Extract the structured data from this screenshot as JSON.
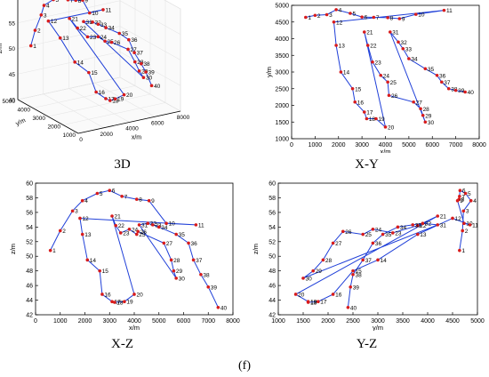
{
  "figure_label": "(f)",
  "colors": {
    "line": "#1f3fd8",
    "point": "#d81c1c",
    "axis": "#000000",
    "grid": "#e6e6e6"
  },
  "chart_data": [
    {
      "id": "3d",
      "caption": "3D",
      "type": "line",
      "projection": "3d",
      "xlabel": "x/m",
      "ylabel": "y/m",
      "zlabel": "z/m",
      "xlim": [
        0,
        8000
      ],
      "ylim": [
        1000,
        5000
      ],
      "zlim": [
        40,
        60
      ],
      "xticks": [
        0,
        2000,
        4000,
        6000,
        8000
      ],
      "yticks": [
        1000,
        2000,
        3000,
        4000,
        5000
      ],
      "zticks": [
        40,
        45,
        50,
        55,
        60
      ],
      "grid": true
    },
    {
      "id": "xy",
      "caption": "X-Y",
      "type": "line",
      "xlabel": "x/m",
      "ylabel": "y/m",
      "xlim": [
        0,
        8000
      ],
      "ylim": [
        1000,
        5000
      ],
      "xticks": [
        0,
        1000,
        2000,
        3000,
        4000,
        5000,
        6000,
        7000,
        8000
      ],
      "yticks": [
        1000,
        1500,
        2000,
        2500,
        3000,
        3500,
        4000,
        4500,
        5000
      ],
      "grid": false
    },
    {
      "id": "xz",
      "caption": "X-Z",
      "type": "line",
      "xlabel": "x/m",
      "ylabel": "z/m",
      "xlim": [
        0,
        8000
      ],
      "ylim": [
        42,
        60
      ],
      "xticks": [
        0,
        1000,
        2000,
        3000,
        4000,
        5000,
        6000,
        7000,
        8000
      ],
      "yticks": [
        42,
        44,
        46,
        48,
        50,
        52,
        54,
        56,
        58,
        60
      ],
      "grid": false
    },
    {
      "id": "yz",
      "caption": "Y-Z",
      "type": "line",
      "xlabel": "y/m",
      "ylabel": "z/m",
      "xlim": [
        1000,
        5000
      ],
      "ylim": [
        42,
        60
      ],
      "xticks": [
        1000,
        1500,
        2000,
        2500,
        3000,
        3500,
        4000,
        4500,
        5000
      ],
      "yticks": [
        42,
        44,
        46,
        48,
        50,
        52,
        54,
        56,
        58,
        60
      ],
      "grid": false
    }
  ],
  "points": [
    {
      "id": 1,
      "x": 600,
      "y": 4640,
      "z": 50.8
    },
    {
      "id": 2,
      "x": 1000,
      "y": 4700,
      "z": 53.5
    },
    {
      "id": 3,
      "x": 1500,
      "y": 4720,
      "z": 56.2
    },
    {
      "id": 4,
      "x": 1900,
      "y": 4870,
      "z": 57.6
    },
    {
      "id": 5,
      "x": 2500,
      "y": 4760,
      "z": 58.6
    },
    {
      "id": 6,
      "x": 3000,
      "y": 4650,
      "z": 59.0
    },
    {
      "id": 7,
      "x": 3500,
      "y": 4640,
      "z": 58.2
    },
    {
      "id": 8,
      "x": 4100,
      "y": 4630,
      "z": 57.8
    },
    {
      "id": 9,
      "x": 4600,
      "y": 4600,
      "z": 57.6
    },
    {
      "id": 10,
      "x": 5300,
      "y": 4730,
      "z": 54.5
    },
    {
      "id": 11,
      "x": 6500,
      "y": 4850,
      "z": 54.3
    },
    {
      "id": 12,
      "x": 1800,
      "y": 4500,
      "z": 55.2
    },
    {
      "id": 13,
      "x": 1900,
      "y": 3800,
      "z": 53.0
    },
    {
      "id": 14,
      "x": 2100,
      "y": 3000,
      "z": 49.5
    },
    {
      "id": 15,
      "x": 2600,
      "y": 2500,
      "z": 48.0
    },
    {
      "id": 16,
      "x": 2700,
      "y": 2100,
      "z": 44.8
    },
    {
      "id": 17,
      "x": 3100,
      "y": 1800,
      "z": 43.8
    },
    {
      "id": 18,
      "x": 3200,
      "y": 1600,
      "z": 43.7
    },
    {
      "id": 19,
      "x": 3600,
      "y": 1600,
      "z": 43.8
    },
    {
      "id": 20,
      "x": 4000,
      "y": 1350,
      "z": 44.8
    },
    {
      "id": 21,
      "x": 3100,
      "y": 4200,
      "z": 55.5
    },
    {
      "id": 22,
      "x": 3250,
      "y": 3800,
      "z": 54.2
    },
    {
      "id": 23,
      "x": 3450,
      "y": 3300,
      "z": 53.2
    },
    {
      "id": 24,
      "x": 3800,
      "y": 2900,
      "z": 53.7
    },
    {
      "id": 25,
      "x": 4100,
      "y": 2700,
      "z": 53.0
    },
    {
      "id": 26,
      "x": 4150,
      "y": 2300,
      "z": 53.4
    },
    {
      "id": 27,
      "x": 5200,
      "y": 2100,
      "z": 51.8
    },
    {
      "id": 28,
      "x": 5500,
      "y": 1900,
      "z": 49.5
    },
    {
      "id": 29,
      "x": 5600,
      "y": 1700,
      "z": 48.0
    },
    {
      "id": 30,
      "x": 5700,
      "y": 1500,
      "z": 47.0
    },
    {
      "id": 31,
      "x": 4200,
      "y": 4200,
      "z": 54.3
    },
    {
      "id": 32,
      "x": 4550,
      "y": 3900,
      "z": 54.5
    },
    {
      "id": 33,
      "x": 4750,
      "y": 3700,
      "z": 54.3
    },
    {
      "id": 34,
      "x": 5000,
      "y": 3400,
      "z": 54.0
    },
    {
      "id": 35,
      "x": 5700,
      "y": 3100,
      "z": 53.0
    },
    {
      "id": 36,
      "x": 6200,
      "y": 2900,
      "z": 51.8
    },
    {
      "id": 37,
      "x": 6400,
      "y": 2700,
      "z": 49.5
    },
    {
      "id": 38,
      "x": 6700,
      "y": 2500,
      "z": 47.5
    },
    {
      "id": 39,
      "x": 7000,
      "y": 2450,
      "z": 45.8
    },
    {
      "id": 40,
      "x": 7400,
      "y": 2400,
      "z": 43.0
    }
  ],
  "path": [
    1,
    2,
    3,
    4,
    5,
    6,
    7,
    8,
    9,
    10,
    11,
    12,
    13,
    14,
    15,
    16,
    17,
    18,
    19,
    20,
    21,
    22,
    23,
    24,
    25,
    26,
    27,
    28,
    29,
    30,
    31,
    32,
    33,
    34,
    35,
    36,
    37,
    38,
    39,
    40
  ]
}
